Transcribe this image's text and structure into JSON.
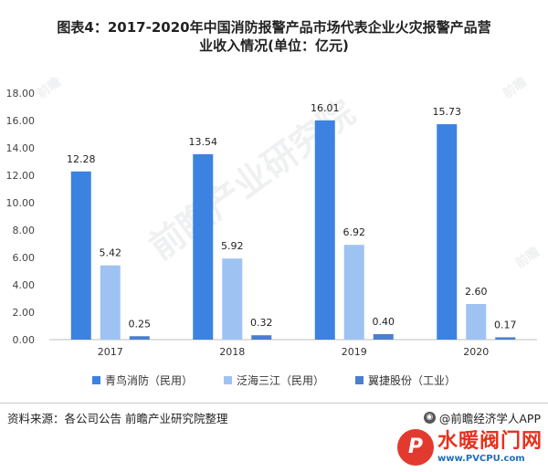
{
  "title_line1": "图表4：2017-2020年中国消防报警产品市场代表企业火灾报警产品营",
  "title_line2": "业收入情况(单位：亿元)",
  "source": "资料来源：各公司公告 前瞻产业研究院整理",
  "credit": "@前瞻经济学人APP",
  "watermark": "前瞻产业研究院",
  "watermark_small": "前瞻",
  "logo_name": "水暖阀门网",
  "logo_url": "www.PVCPU.com",
  "chart_data": {
    "type": "bar",
    "categories": [
      "2017",
      "2018",
      "2019",
      "2020"
    ],
    "series": [
      {
        "name": "青鸟消防（民用）",
        "values": [
          12.28,
          13.54,
          16.01,
          15.73
        ],
        "color": "#3c82e0"
      },
      {
        "name": "泛海三江（民用）",
        "values": [
          5.42,
          5.92,
          6.92,
          2.6
        ],
        "color": "#9ec3f3"
      },
      {
        "name": "翼捷股份（工业）",
        "values": [
          0.25,
          0.32,
          0.4,
          0.17
        ],
        "color": "#4a7fcf"
      }
    ],
    "ylim": [
      0,
      18
    ],
    "yticks": [
      "0.00",
      "2.00",
      "4.00",
      "6.00",
      "8.00",
      "10.00",
      "12.00",
      "14.00",
      "16.00",
      "18.00"
    ],
    "grid": false,
    "legend": "bottom"
  }
}
